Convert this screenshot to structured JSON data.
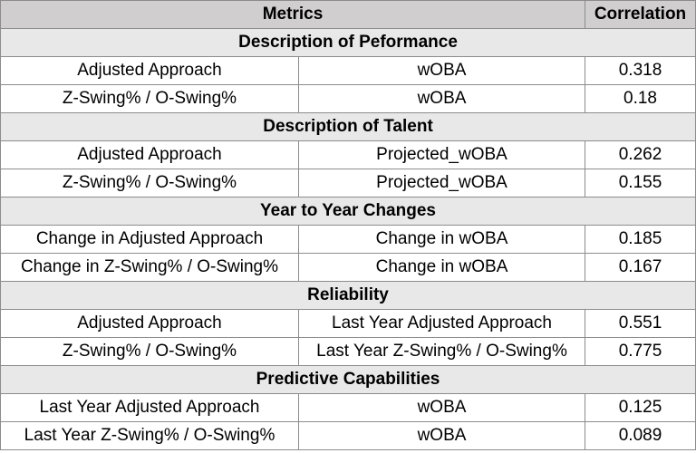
{
  "header": {
    "metrics": "Metrics",
    "correlation": "Correlation"
  },
  "sections": [
    {
      "title": "Description of Peformance",
      "rows": [
        {
          "metric": "Adjusted Approach",
          "target": "wOBA",
          "value": "0.318"
        },
        {
          "metric": "Z-Swing% / O-Swing%",
          "target": "wOBA",
          "value": "0.18"
        }
      ]
    },
    {
      "title": "Description of Talent",
      "rows": [
        {
          "metric": "Adjusted Approach",
          "target": "Projected_wOBA",
          "value": "0.262"
        },
        {
          "metric": "Z-Swing% / O-Swing%",
          "target": "Projected_wOBA",
          "value": "0.155"
        }
      ]
    },
    {
      "title": "Year to Year Changes",
      "rows": [
        {
          "metric": "Change in Adjusted Approach",
          "target": "Change in wOBA",
          "value": "0.185"
        },
        {
          "metric": "Change in Z-Swing% / O-Swing%",
          "target": "Change in wOBA",
          "value": "0.167"
        }
      ]
    },
    {
      "title": "Reliability",
      "rows": [
        {
          "metric": "Adjusted Approach",
          "target": "Last Year Adjusted Approach",
          "value": "0.551"
        },
        {
          "metric": "Z-Swing% / O-Swing%",
          "target": "Last Year Z-Swing% / O-Swing%",
          "value": "0.775"
        }
      ]
    },
    {
      "title": "Predictive Capabilities",
      "rows": [
        {
          "metric": "Last Year Adjusted Approach",
          "target": "wOBA",
          "value": "0.125"
        },
        {
          "metric": "Last Year Z-Swing% / O-Swing%",
          "target": "wOBA",
          "value": "0.089"
        }
      ]
    }
  ]
}
